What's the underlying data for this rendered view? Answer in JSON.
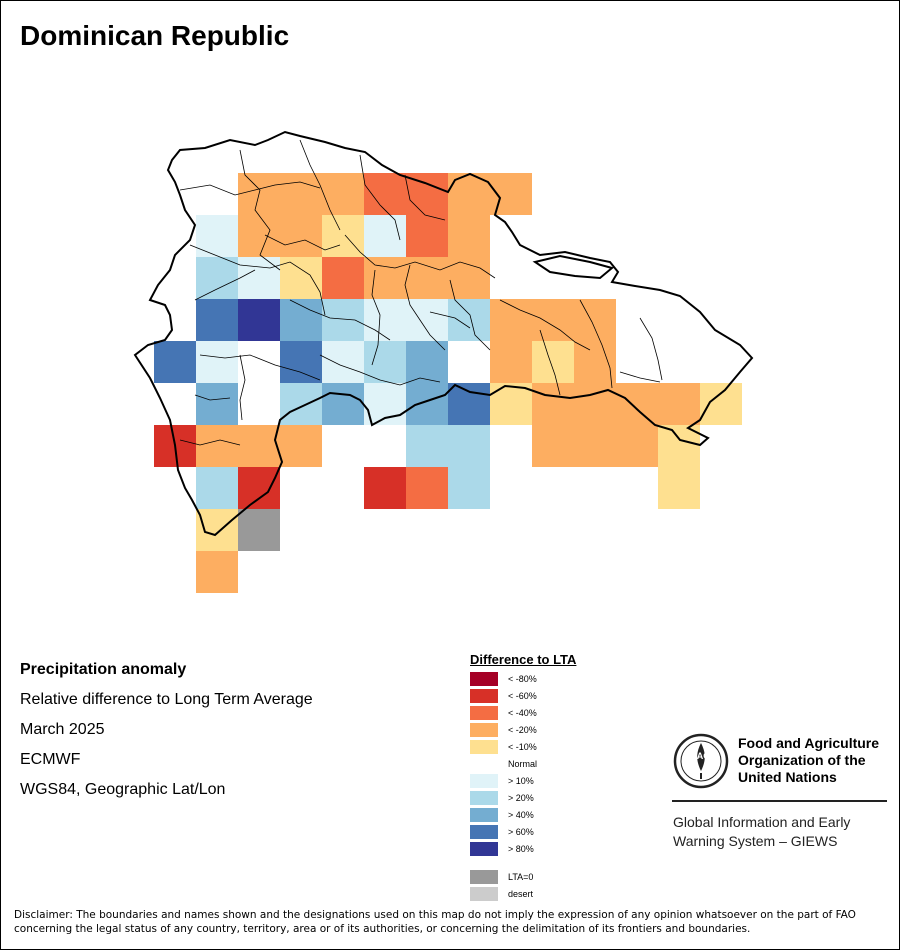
{
  "title": "Dominican Republic",
  "info": {
    "heading": "Precipitation anomaly",
    "subtitle": "Relative difference to Long Term Average",
    "period": "March 2025",
    "source": "ECMWF",
    "projection": "WGS84, Geographic Lat/Lon"
  },
  "legend": {
    "title": "Difference to LTA",
    "items": [
      {
        "label": "< -80%",
        "color": "#a50026"
      },
      {
        "label": "< -60%",
        "color": "#d73027"
      },
      {
        "label": "< -40%",
        "color": "#f46d43"
      },
      {
        "label": "< -20%",
        "color": "#fdae61"
      },
      {
        "label": "< -10%",
        "color": "#fee090"
      },
      {
        "label": "Normal",
        "color": "#ffffff"
      },
      {
        "label": "> 10%",
        "color": "#e0f3f8"
      },
      {
        "label": "> 20%",
        "color": "#abd9e9"
      },
      {
        "label": "> 40%",
        "color": "#74add1"
      },
      {
        "label": "> 60%",
        "color": "#4575b4"
      },
      {
        "label": "> 80%",
        "color": "#313695"
      },
      {
        "label": "LTA=0",
        "color": "#999999"
      },
      {
        "label": "desert",
        "color": "#cccccc"
      }
    ]
  },
  "org": {
    "logo_text": "FAO",
    "logo_motto": "FIAT PANIS",
    "name_lines": [
      "Food and Agriculture",
      "Organization of the",
      "United Nations"
    ],
    "system_lines": [
      "Global Information and Early",
      "Warning System – GIEWS"
    ]
  },
  "disclaimer": "Disclaimer: The boundaries and names shown and the designations used on this map do not imply the expression of any opinion whatsoever on the part of FAO concerning the legal status of any country, territory, area or of its authorities, or concerning the delimitation of its frontiers and boundaries.",
  "grid": {
    "cols": 15,
    "rows": 9,
    "classes": [
      "....DC.D.......",
      "....DDFC.......",
      "..FFEGDDE......",
      "..JJGGFF.......",
      "..HIH..F.......",
      "..GHHG.G.......",
      "...IHHG........",
      "..........DDDD.",
      "..........DDEE."
    ]
  },
  "cells": [
    [
      6,
      4,
      "D"
    ],
    [
      7,
      4,
      "D"
    ],
    [
      8,
      4,
      "D"
    ],
    [
      9,
      4,
      "C"
    ],
    [
      10,
      4,
      "C"
    ],
    [
      11,
      4,
      "D"
    ],
    [
      12,
      4,
      "D"
    ],
    [
      6,
      5,
      "D"
    ],
    [
      7,
      5,
      "D"
    ],
    [
      8,
      5,
      "E"
    ],
    [
      9,
      5,
      "F"
    ],
    [
      10,
      5,
      "C"
    ],
    [
      11,
      5,
      "D"
    ],
    [
      5,
      5,
      "F"
    ],
    [
      5,
      6,
      "G"
    ],
    [
      6,
      6,
      "F"
    ],
    [
      7,
      6,
      "E"
    ],
    [
      8,
      6,
      "C"
    ],
    [
      9,
      6,
      "D"
    ],
    [
      10,
      6,
      "D"
    ],
    [
      11,
      6,
      "D"
    ],
    [
      5,
      7,
      "I"
    ],
    [
      6,
      7,
      "J"
    ],
    [
      7,
      7,
      "H"
    ],
    [
      8,
      7,
      "G"
    ],
    [
      9,
      7,
      "F"
    ],
    [
      10,
      7,
      "F"
    ],
    [
      11,
      7,
      "G"
    ],
    [
      12,
      7,
      "D"
    ],
    [
      13,
      7,
      "D"
    ],
    [
      14,
      7,
      "D"
    ],
    [
      4,
      8,
      "I"
    ],
    [
      5,
      8,
      "F"
    ],
    [
      7,
      8,
      "I"
    ],
    [
      8,
      8,
      "F"
    ],
    [
      9,
      8,
      "G"
    ],
    [
      10,
      8,
      "H"
    ],
    [
      12,
      8,
      "D"
    ],
    [
      13,
      8,
      "E"
    ],
    [
      14,
      8,
      "D"
    ],
    [
      5,
      9,
      "H"
    ],
    [
      7,
      9,
      "G"
    ],
    [
      8,
      9,
      "H"
    ],
    [
      9,
      9,
      "F"
    ],
    [
      10,
      9,
      "H"
    ],
    [
      11,
      9,
      "I"
    ],
    [
      12,
      9,
      "E"
    ],
    [
      13,
      9,
      "D"
    ],
    [
      14,
      9,
      "D"
    ],
    [
      15,
      9,
      "D"
    ],
    [
      16,
      9,
      "D"
    ],
    [
      17,
      9,
      "E"
    ],
    [
      4,
      10,
      "B"
    ],
    [
      5,
      10,
      "D"
    ],
    [
      6,
      10,
      "D"
    ],
    [
      7,
      10,
      "D"
    ],
    [
      10,
      10,
      "G"
    ],
    [
      11,
      10,
      "G"
    ],
    [
      13,
      10,
      "D"
    ],
    [
      14,
      10,
      "D"
    ],
    [
      15,
      10,
      "D"
    ],
    [
      16,
      10,
      "E"
    ],
    [
      5,
      11,
      "G"
    ],
    [
      6,
      11,
      "B"
    ],
    [
      9,
      11,
      "B"
    ],
    [
      10,
      11,
      "C"
    ],
    [
      11,
      11,
      "G"
    ],
    [
      16,
      11,
      "E"
    ],
    [
      5,
      12,
      "E"
    ],
    [
      6,
      12,
      "K"
    ],
    [
      5,
      13,
      "D"
    ]
  ]
}
